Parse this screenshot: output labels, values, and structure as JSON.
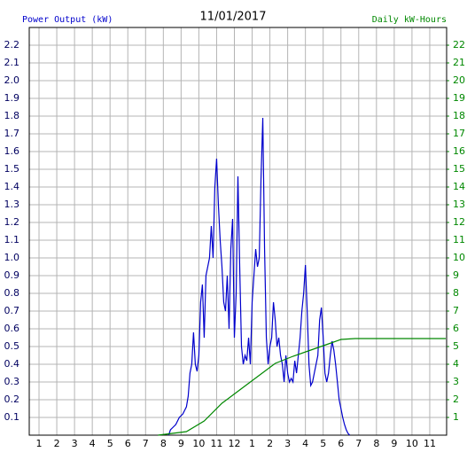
{
  "chart_data": {
    "type": "line",
    "title": "11/01/2017",
    "y_label": "Power Output (kW)",
    "y2_label": "Daily kW-Hours",
    "xlim": [
      0.45,
      23.95
    ],
    "xticks": [
      1,
      2,
      3,
      4,
      5,
      6,
      7,
      8,
      9,
      10,
      11,
      12,
      {
        "value": 13,
        "label": "1"
      },
      {
        "value": 14,
        "label": "2"
      },
      {
        "value": 15,
        "label": "3"
      },
      {
        "value": 16,
        "label": "4"
      },
      {
        "value": 17,
        "label": "5"
      },
      {
        "value": 18,
        "label": "6"
      },
      {
        "value": 19,
        "label": "7"
      },
      {
        "value": 20,
        "label": "8"
      },
      {
        "value": 21,
        "label": "9"
      },
      {
        "value": 22,
        "label": "10"
      },
      {
        "value": 23,
        "label": "11"
      }
    ],
    "ylim": [
      0,
      2.3
    ],
    "yticks": [
      0.1,
      0.2,
      0.3,
      0.4,
      0.5,
      0.6,
      0.7,
      0.8,
      0.9,
      {
        "value": 1,
        "label": "1.0"
      },
      1.1,
      1.2,
      1.3,
      1.4,
      1.5,
      1.6,
      1.7,
      1.8,
      1.9,
      {
        "value": 2,
        "label": "2.0"
      },
      2.1,
      2.2
    ],
    "y2lim": [
      0,
      23
    ],
    "y2ticks": [
      1,
      2,
      3,
      4,
      5,
      6,
      7,
      8,
      9,
      10,
      11,
      12,
      13,
      14,
      15,
      16,
      17,
      18,
      19,
      20,
      21,
      22
    ],
    "grid": true,
    "series": [
      {
        "color": "#0000cc",
        "x": [
          8.3,
          8.4,
          8.5,
          8.6,
          8.7,
          8.8,
          8.9,
          9.0,
          9.1,
          9.2,
          9.3,
          9.4,
          9.5,
          9.6,
          9.7,
          9.8,
          9.9,
          10.0,
          10.1,
          10.2,
          10.3,
          10.4,
          10.5,
          10.6,
          10.7,
          10.8,
          10.9,
          11.0,
          11.1,
          11.2,
          11.3,
          11.4,
          11.5,
          11.6,
          11.7,
          11.8,
          11.9,
          12.0,
          12.1,
          12.2,
          12.3,
          12.4,
          12.5,
          12.6,
          12.7,
          12.8,
          12.9,
          13.0,
          13.1,
          13.2,
          13.3,
          13.4,
          13.5,
          13.6,
          13.7,
          13.8,
          13.9,
          14.0,
          14.1,
          14.2,
          14.3,
          14.4,
          14.5,
          14.6,
          14.7,
          14.8,
          14.9,
          15.0,
          15.1,
          15.2,
          15.3,
          15.4,
          15.5,
          15.6,
          15.7,
          15.8,
          15.9,
          16.0,
          16.1,
          16.2,
          16.3,
          16.4,
          16.5,
          16.6,
          16.7,
          16.8,
          16.9,
          17.0,
          17.1,
          17.2,
          17.3,
          17.4,
          17.5,
          17.6,
          17.7,
          17.8,
          17.9,
          18.0,
          18.1,
          18.2,
          18.3,
          18.4,
          18.5
        ],
        "values": [
          0,
          0.03,
          0.04,
          0.05,
          0.06,
          0.08,
          0.1,
          0.11,
          0.12,
          0.14,
          0.16,
          0.22,
          0.35,
          0.4,
          0.58,
          0.4,
          0.36,
          0.45,
          0.75,
          0.85,
          0.55,
          0.9,
          0.95,
          1.0,
          1.18,
          1.0,
          1.4,
          1.56,
          1.3,
          1.1,
          0.95,
          0.75,
          0.7,
          0.9,
          0.6,
          1.05,
          1.22,
          0.55,
          0.8,
          1.46,
          0.95,
          0.5,
          0.4,
          0.45,
          0.42,
          0.55,
          0.4,
          0.75,
          0.9,
          1.05,
          0.95,
          1.0,
          1.45,
          1.79,
          1.05,
          0.55,
          0.4,
          0.5,
          0.55,
          0.75,
          0.65,
          0.5,
          0.55,
          0.45,
          0.4,
          0.3,
          0.45,
          0.35,
          0.3,
          0.32,
          0.3,
          0.42,
          0.35,
          0.45,
          0.55,
          0.7,
          0.8,
          0.96,
          0.7,
          0.4,
          0.28,
          0.3,
          0.35,
          0.4,
          0.45,
          0.65,
          0.72,
          0.55,
          0.35,
          0.3,
          0.35,
          0.45,
          0.53,
          0.48,
          0.4,
          0.3,
          0.2,
          0.15,
          0.1,
          0.06,
          0.03,
          0.01,
          0
        ]
      },
      {
        "color": "#008800",
        "axis": "y2",
        "x": [
          7.7,
          9.3,
          10.3,
          11.3,
          12.3,
          13.3,
          14.3,
          15.3,
          16.3,
          17.3,
          18.0,
          18.8,
          23.9
        ],
        "values": [
          0,
          0.2,
          0.8,
          1.8,
          2.55,
          3.3,
          4.05,
          4.45,
          4.8,
          5.15,
          5.4,
          5.45,
          5.45
        ]
      }
    ]
  }
}
